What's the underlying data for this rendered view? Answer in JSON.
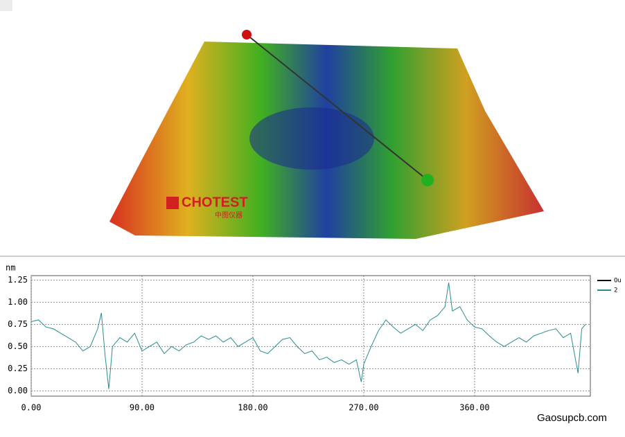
{
  "logo": {
    "brand": "CHOTEST",
    "brand_cn": "中图仪器"
  },
  "watermark": "Gaosupcb.com",
  "chart_data": {
    "type": "line",
    "y_label": "nm",
    "legend": [
      {
        "name": "Ou",
        "color": "#000000"
      },
      {
        "name": "2",
        "color": "#2a8c8c"
      }
    ],
    "x": [
      0,
      6,
      12,
      18,
      24,
      30,
      36,
      42,
      48,
      54,
      57,
      60,
      63,
      66,
      72,
      78,
      84,
      90,
      96,
      102,
      108,
      114,
      120,
      126,
      132,
      138,
      144,
      150,
      156,
      162,
      168,
      174,
      180,
      186,
      192,
      198,
      204,
      210,
      216,
      222,
      228,
      234,
      240,
      246,
      252,
      258,
      264,
      268,
      270,
      276,
      282,
      288,
      294,
      300,
      306,
      312,
      318,
      324,
      330,
      336,
      339,
      342,
      348,
      354,
      360,
      366,
      372,
      378,
      384,
      390,
      396,
      402,
      408,
      414,
      420,
      426,
      432,
      438,
      444,
      447,
      450
    ],
    "series": [
      {
        "name": "2",
        "color": "#2a8c8c",
        "values": [
          0.78,
          0.8,
          0.72,
          0.7,
          0.65,
          0.6,
          0.55,
          0.45,
          0.5,
          0.7,
          0.88,
          0.4,
          0.02,
          0.5,
          0.6,
          0.55,
          0.65,
          0.45,
          0.5,
          0.55,
          0.42,
          0.5,
          0.45,
          0.52,
          0.55,
          0.62,
          0.58,
          0.62,
          0.55,
          0.6,
          0.5,
          0.55,
          0.6,
          0.45,
          0.42,
          0.5,
          0.58,
          0.6,
          0.5,
          0.42,
          0.45,
          0.35,
          0.38,
          0.32,
          0.35,
          0.3,
          0.35,
          0.1,
          0.3,
          0.5,
          0.68,
          0.8,
          0.72,
          0.65,
          0.7,
          0.75,
          0.68,
          0.8,
          0.85,
          0.95,
          1.22,
          0.9,
          0.95,
          0.8,
          0.72,
          0.7,
          0.62,
          0.55,
          0.5,
          0.55,
          0.6,
          0.55,
          0.62,
          0.65,
          0.68,
          0.7,
          0.6,
          0.65,
          0.2,
          0.7,
          0.75
        ]
      }
    ],
    "xlim": [
      0,
      454
    ],
    "ylim": [
      -0.06,
      1.3
    ],
    "xticks": [
      {
        "value": 0,
        "label": "0.00"
      },
      {
        "value": 90,
        "label": "90.00"
      },
      {
        "value": 180,
        "label": "180.00"
      },
      {
        "value": 270,
        "label": "270.00"
      },
      {
        "value": 360,
        "label": "360.00"
      }
    ],
    "yticks": [
      {
        "value": 0,
        "label": "0.00"
      },
      0.25,
      {
        "value": 0.5,
        "label": "0.50"
      },
      0.75,
      {
        "value": 1,
        "label": "1.00"
      },
      1.25
    ],
    "grid": true
  }
}
